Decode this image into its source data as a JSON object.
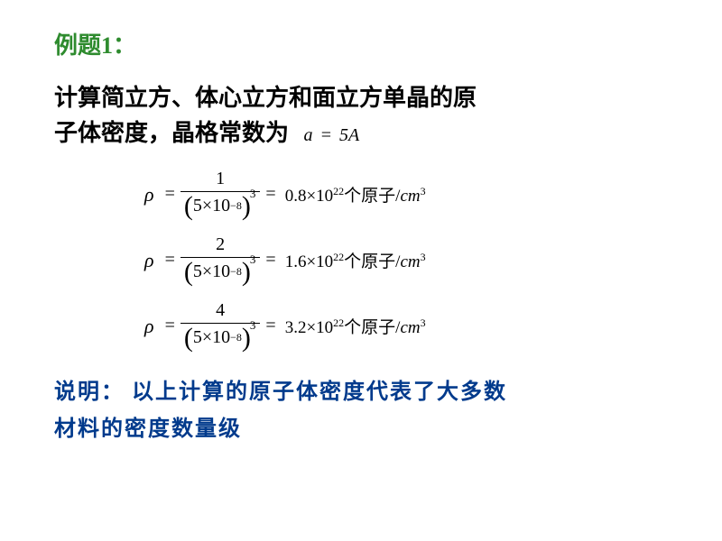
{
  "title": {
    "text": "例题1：",
    "color": "#2e8b2e"
  },
  "problem": {
    "line1": "计算简立方、体心立方和面立方单晶的原",
    "line2_prefix": "子体密度，晶格常数为",
    "const_lhs": "a",
    "const_eq": "=",
    "const_rhs_num": "5",
    "const_rhs_unit": "A"
  },
  "denominator": {
    "base": "5",
    "times": "×",
    "ten": "10",
    "exp": "−8",
    "outer_exp": "3"
  },
  "equations": [
    {
      "numerator": "1",
      "value": "0.8",
      "exp": "22"
    },
    {
      "numerator": "2",
      "value": "1.6",
      "exp": "22"
    },
    {
      "numerator": "4",
      "value": "3.2",
      "exp": "22"
    }
  ],
  "rhs_labels": {
    "times": "×",
    "ten": "10",
    "unit_cn": "个原子",
    "slash": "/",
    "cm": "cm",
    "cm_exp": "3"
  },
  "symbols": {
    "rho": "ρ",
    "equals": "="
  },
  "note": {
    "line1": "说明： 以上计算的原子体密度代表了大多数",
    "line2": "材料的密度数量级",
    "color": "#003a8c"
  }
}
